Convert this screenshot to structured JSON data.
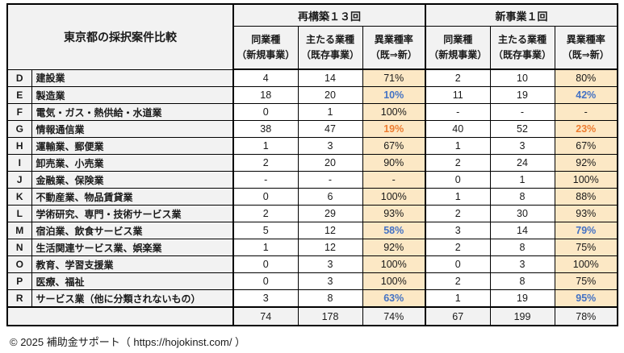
{
  "title": "東京都の採択案件比較",
  "palette": {
    "accent_blue": "#4472c4",
    "accent_orange": "#ed7d31",
    "band_bg": "#fce8c5",
    "gray_bg": "#f2f2f2"
  },
  "groups": [
    {
      "label": "再構築１３回"
    },
    {
      "label": "新事業１回"
    }
  ],
  "subheaders": [
    {
      "line1": "同業種",
      "line2": "（新規事業）"
    },
    {
      "line1": "主たる業種",
      "line2": "（既存事業）"
    },
    {
      "line1": "異業種率",
      "line2": "（既⇒新）"
    }
  ],
  "rows": [
    {
      "code": "D",
      "name": "建設業",
      "values": [
        "4",
        "14",
        "71%",
        "2",
        "10",
        "80%"
      ],
      "rate_colors": [
        null,
        null
      ]
    },
    {
      "code": "E",
      "name": "製造業",
      "values": [
        "18",
        "20",
        "10%",
        "11",
        "19",
        "42%"
      ],
      "rate_colors": [
        "blue",
        "blue"
      ]
    },
    {
      "code": "F",
      "name": "電気・ガス・熱供給・水道業",
      "values": [
        "0",
        "1",
        "100%",
        "-",
        "-",
        "-"
      ],
      "rate_colors": [
        null,
        null
      ]
    },
    {
      "code": "G",
      "name": "情報通信業",
      "values": [
        "38",
        "47",
        "19%",
        "40",
        "52",
        "23%"
      ],
      "rate_colors": [
        "orange",
        "orange"
      ]
    },
    {
      "code": "H",
      "name": "運輸業、郵便業",
      "values": [
        "1",
        "3",
        "67%",
        "1",
        "3",
        "67%"
      ],
      "rate_colors": [
        null,
        null
      ]
    },
    {
      "code": "I",
      "name": "卸売業、小売業",
      "values": [
        "2",
        "20",
        "90%",
        "2",
        "24",
        "92%"
      ],
      "rate_colors": [
        null,
        null
      ]
    },
    {
      "code": "J",
      "name": "金融業、保険業",
      "values": [
        "-",
        "-",
        "-",
        "0",
        "1",
        "100%"
      ],
      "rate_colors": [
        null,
        null
      ]
    },
    {
      "code": "K",
      "name": "不動産業、物品賃貸業",
      "values": [
        "0",
        "6",
        "100%",
        "1",
        "8",
        "88%"
      ],
      "rate_colors": [
        null,
        null
      ]
    },
    {
      "code": "L",
      "name": "学術研究、専門・技術サービス業",
      "values": [
        "2",
        "29",
        "93%",
        "2",
        "30",
        "93%"
      ],
      "rate_colors": [
        null,
        null
      ]
    },
    {
      "code": "M",
      "name": "宿泊業、飲食サービス業",
      "values": [
        "5",
        "12",
        "58%",
        "3",
        "14",
        "79%"
      ],
      "rate_colors": [
        "blue",
        "blue"
      ]
    },
    {
      "code": "N",
      "name": "生活関連サービス業、娯楽業",
      "values": [
        "1",
        "12",
        "92%",
        "2",
        "8",
        "75%"
      ],
      "rate_colors": [
        null,
        null
      ]
    },
    {
      "code": "O",
      "name": "教育、学習支援業",
      "values": [
        "0",
        "3",
        "100%",
        "0",
        "3",
        "100%"
      ],
      "rate_colors": [
        null,
        null
      ]
    },
    {
      "code": "P",
      "name": "医療、福祉",
      "values": [
        "0",
        "3",
        "100%",
        "2",
        "8",
        "75%"
      ],
      "rate_colors": [
        null,
        null
      ]
    },
    {
      "code": "R",
      "name": "サービス業（他に分類されないもの）",
      "values": [
        "3",
        "8",
        "63%",
        "1",
        "19",
        "95%"
      ],
      "rate_colors": [
        "blue",
        "blue"
      ]
    }
  ],
  "totals": [
    "74",
    "178",
    "74%",
    "67",
    "199",
    "78%"
  ],
  "footer": "© 2025 補助金サポート（ https://hojokinst.com/ ）"
}
